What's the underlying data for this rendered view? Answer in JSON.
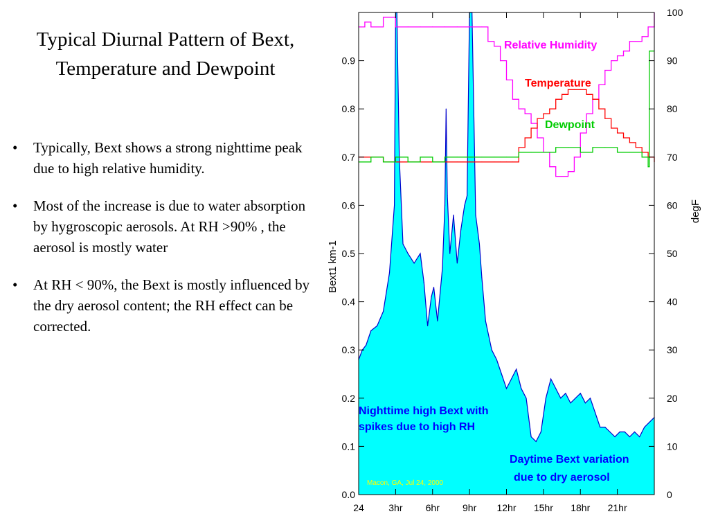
{
  "slide": {
    "title_line1": "Typical Diurnal Pattern of Bext,",
    "title_line2": "Temperature and Dewpoint",
    "bullets": [
      "Typically, Bext shows a strong nighttime peak due to high relative humidity.",
      "Most of the increase is due to water absorption by hygroscopic aerosols. At RH >90% , the aerosol is mostly water",
      "At RH < 90%, the Bext is mostly influenced by the dry aerosol content; the RH effect can be corrected."
    ],
    "bullet_glyph": "•"
  },
  "chart_data": {
    "type": "area",
    "xlabel": "",
    "ylabel_left": "Bext1   km-1",
    "ylabel_right": "degF",
    "x_ticks": [
      "24",
      "3hr",
      "6hr",
      "9hr",
      "12hr",
      "15hr",
      "18hr",
      "21hr"
    ],
    "x_tick_hours": [
      0,
      3,
      6,
      9,
      12,
      15,
      18,
      21
    ],
    "xlim_hours": [
      0,
      24
    ],
    "ylim_left": [
      0.0,
      1.0
    ],
    "ylim_right": [
      0,
      100
    ],
    "y_ticks_left": [
      "0.0",
      "0.1",
      "0.2",
      "0.3",
      "0.4",
      "0.5",
      "0.6",
      "0.7",
      "0.8",
      "0.9"
    ],
    "y_ticks_right": [
      "0",
      "10",
      "20",
      "30",
      "40",
      "50",
      "60",
      "70",
      "80",
      "90",
      "100"
    ],
    "grid": false,
    "series": [
      {
        "name": "Bext1",
        "axis": "left",
        "color": "#0000cc",
        "fill": "#00ffff",
        "x": [
          0,
          0.3,
          0.6,
          1,
          1.5,
          2,
          2.5,
          2.9,
          3.0,
          3.1,
          3.3,
          3.6,
          4,
          4.5,
          5,
          5.3,
          5.6,
          5.9,
          6.1,
          6.4,
          6.8,
          7.0,
          7.1,
          7.2,
          7.4,
          7.7,
          8,
          8.3,
          8.6,
          8.8,
          9.0,
          9.1,
          9.2,
          9.5,
          9.8,
          10.0,
          10.3,
          10.8,
          11.2,
          11.6,
          12,
          12.4,
          12.8,
          13.2,
          13.6,
          14,
          14.4,
          14.8,
          15.2,
          15.6,
          16,
          16.4,
          16.8,
          17.2,
          17.6,
          18,
          18.4,
          18.8,
          19.2,
          19.6,
          20,
          20.4,
          20.8,
          21.2,
          21.6,
          22,
          22.4,
          22.8,
          23.2,
          23.6,
          24
        ],
        "y": [
          0.28,
          0.3,
          0.31,
          0.34,
          0.35,
          0.38,
          0.46,
          0.6,
          1.0,
          1.0,
          0.7,
          0.52,
          0.5,
          0.48,
          0.5,
          0.44,
          0.35,
          0.41,
          0.43,
          0.36,
          0.47,
          0.6,
          0.8,
          0.62,
          0.5,
          0.58,
          0.48,
          0.55,
          0.6,
          0.62,
          1.0,
          1.0,
          1.0,
          0.58,
          0.52,
          0.45,
          0.36,
          0.3,
          0.28,
          0.25,
          0.22,
          0.24,
          0.26,
          0.22,
          0.2,
          0.12,
          0.11,
          0.13,
          0.2,
          0.24,
          0.22,
          0.2,
          0.21,
          0.19,
          0.2,
          0.21,
          0.19,
          0.2,
          0.17,
          0.14,
          0.14,
          0.13,
          0.12,
          0.13,
          0.13,
          0.12,
          0.13,
          0.12,
          0.14,
          0.15,
          0.16
        ]
      },
      {
        "name": "Relative Humidity",
        "axis": "right",
        "color": "#ff00ff",
        "x": [
          0,
          0.5,
          1,
          2,
          3,
          4,
          5,
          6,
          7,
          8,
          9,
          10,
          10.5,
          11,
          11.5,
          12,
          12.5,
          13,
          13.5,
          14,
          14.5,
          15,
          15.5,
          16,
          16.5,
          17,
          17.5,
          18,
          18.5,
          19,
          19.5,
          20,
          20.5,
          21,
          21.5,
          22,
          22.5,
          23,
          23.5,
          24
        ],
        "y": [
          97,
          98,
          97,
          99,
          97,
          97,
          97,
          97,
          97,
          97,
          97,
          97,
          94,
          93,
          90,
          86,
          82,
          80,
          79,
          77,
          74,
          71,
          68,
          66,
          66,
          67,
          70,
          75,
          79,
          82,
          85,
          88,
          90,
          91,
          92,
          94,
          94,
          95,
          97,
          100
        ]
      },
      {
        "name": "Temperature",
        "axis": "right",
        "color": "#ff0000",
        "x": [
          0,
          1,
          2,
          3,
          4,
          5,
          6,
          7,
          8,
          9,
          10,
          11,
          11.5,
          12,
          12.5,
          13,
          13.5,
          14,
          14.5,
          15,
          15.5,
          16,
          16.5,
          17,
          17.5,
          18,
          18.5,
          19,
          19.5,
          20,
          20.5,
          21,
          21.5,
          22,
          22.5,
          23,
          23.5,
          24
        ],
        "y": [
          70,
          70,
          69,
          69,
          69,
          69,
          69,
          69,
          69,
          69,
          69,
          69,
          69,
          69,
          69,
          72,
          74,
          76,
          78,
          79,
          80,
          82,
          83,
          84,
          84,
          84,
          83,
          82,
          80,
          78,
          76,
          75,
          74,
          73,
          72,
          71,
          70,
          69
        ]
      },
      {
        "name": "Dewpoint",
        "axis": "right",
        "color": "#00cc00",
        "x": [
          0,
          1,
          2,
          3,
          4,
          5,
          6,
          7,
          8,
          9,
          10,
          11,
          12,
          13,
          14,
          15,
          16,
          17,
          18,
          19,
          20,
          21,
          22,
          23,
          23.5,
          23.6,
          24
        ],
        "y": [
          69,
          70,
          69,
          70,
          69,
          70,
          69,
          70,
          70,
          70,
          70,
          70,
          70,
          71,
          71,
          71,
          72,
          72,
          71,
          72,
          72,
          71,
          71,
          70,
          68,
          92,
          92
        ]
      }
    ],
    "annotations": {
      "rh_label": "Relative Humidity",
      "temp_label": "Temperature",
      "dew_label": "Dewpoint",
      "night_line1": "Nighttime high Bext with",
      "night_line2": "spikes due to high RH",
      "day_line1": "Daytime Bext variation",
      "day_line2": "due to dry aerosol",
      "source": "Macon, GA, Jul 24, 2000"
    }
  }
}
